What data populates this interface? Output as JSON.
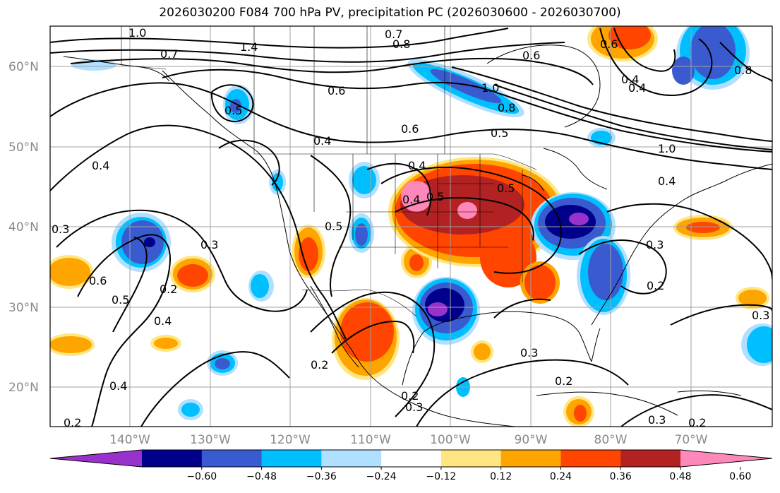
{
  "title": "2026030200 F084 700 hPa PV, precipitation PC (2026030600 - 2026030700)",
  "map": {
    "lat_ticks": [
      "60°N",
      "50°N",
      "40°N",
      "30°N",
      "20°N"
    ],
    "lon_ticks": [
      "140°W",
      "130°W",
      "120°W",
      "110°W",
      "100°W",
      "90°W",
      "80°W",
      "70°W"
    ],
    "contour_labels": [
      "1.0",
      "0.7",
      "1.4",
      "0.7",
      "0.8",
      "0.6",
      "0.5",
      "0.6",
      "0.4",
      "0.4",
      "1.0",
      "0.8",
      "0.5",
      "0.4",
      "0.6",
      "0.3",
      "0.4",
      "0.5",
      "0.5",
      "0.4",
      "0.6",
      "0.5",
      "0.3",
      "0.2",
      "0.4",
      "0.2",
      "0.3",
      "0.2",
      "0.3",
      "0.3",
      "0.2",
      "0.5",
      "0.4",
      "0.3",
      "0.2",
      "0.4",
      "0.2",
      "0.6",
      "0.4",
      "1.0",
      "0.8",
      "0.3",
      "0.2"
    ]
  },
  "colorbar": {
    "ticks": [
      "−0.60",
      "−0.48",
      "−0.36",
      "−0.24",
      "−0.12",
      "0.12",
      "0.24",
      "0.36",
      "0.48",
      "0.60"
    ],
    "colors": [
      "#9932cc",
      "#00008b",
      "#3a5bd0",
      "#00bfff",
      "#b0e0ff",
      "#ffffff",
      "#ffe680",
      "#ffa500",
      "#ff4500",
      "#b22222",
      "#ff88bb"
    ]
  }
}
